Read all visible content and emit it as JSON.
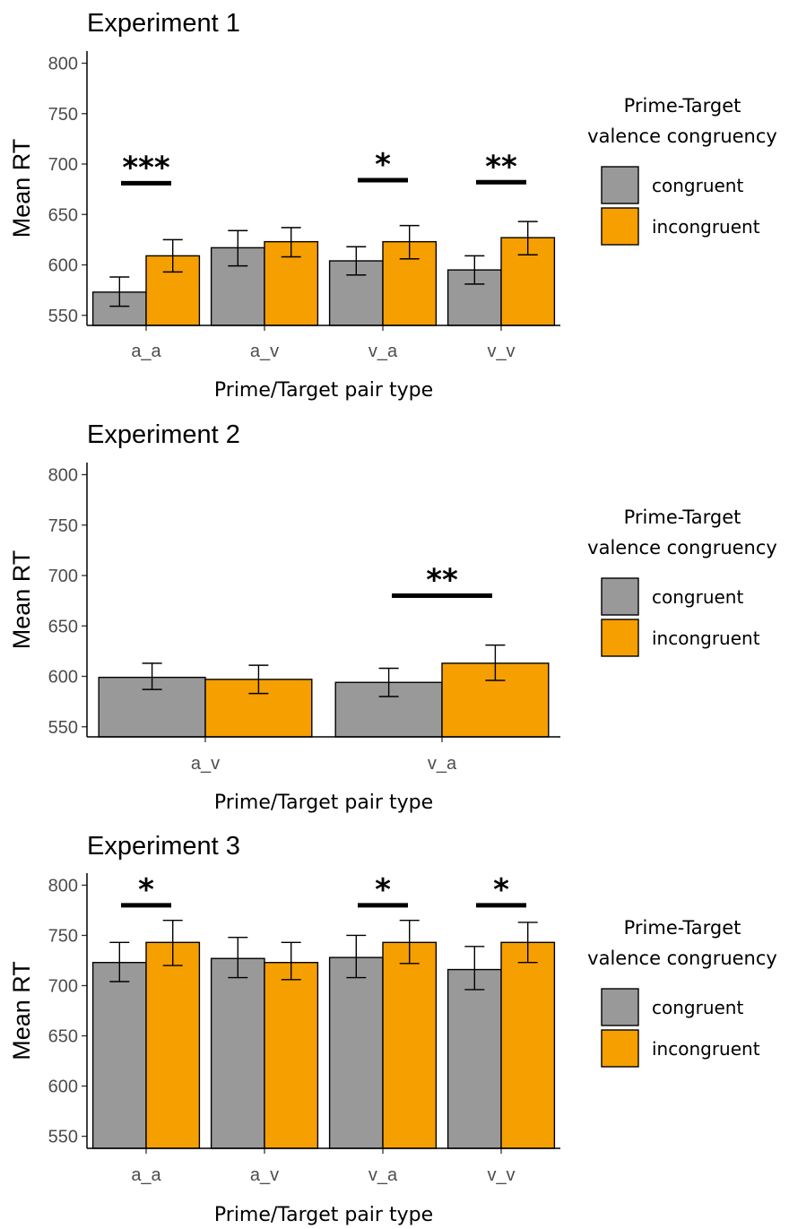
{
  "colors": {
    "congruent": "#999999",
    "incongruent": "#F59F00"
  },
  "chart_data": [
    {
      "type": "bar",
      "title": "Experiment 1",
      "xlabel": "Prime/Target pair type",
      "ylabel": "Mean RT",
      "ylim": [
        540,
        812
      ],
      "yticks": [
        550,
        600,
        650,
        700,
        750,
        800
      ],
      "grid": false,
      "legend_position": "right",
      "legend_title": [
        "Prime-Target",
        "valence congruency"
      ],
      "categories": [
        "a_a",
        "a_v",
        "v_a",
        "v_v"
      ],
      "series": [
        {
          "name": "congruent",
          "values": [
            573,
            617,
            604,
            595
          ],
          "err_low": [
            559,
            599,
            590,
            581
          ],
          "err_high": [
            588,
            634,
            618,
            609
          ]
        },
        {
          "name": "incongruent",
          "values": [
            609,
            623,
            623,
            627
          ],
          "err_low": [
            593,
            608,
            606,
            610
          ],
          "err_high": [
            625,
            637,
            639,
            643
          ]
        }
      ],
      "significance": [
        {
          "category": "a_a",
          "label": "***",
          "y": 681
        },
        {
          "category": "v_a",
          "label": "*",
          "y": 684
        },
        {
          "category": "v_v",
          "label": "**",
          "y": 682
        }
      ]
    },
    {
      "type": "bar",
      "title": "Experiment 2",
      "xlabel": "Prime/Target pair type",
      "ylabel": "Mean RT",
      "ylim": [
        540,
        812
      ],
      "yticks": [
        550,
        600,
        650,
        700,
        750,
        800
      ],
      "grid": false,
      "legend_position": "right",
      "legend_title": [
        "Prime-Target",
        "valence congruency"
      ],
      "categories": [
        "a_v",
        "v_a"
      ],
      "series": [
        {
          "name": "congruent",
          "values": [
            599,
            594
          ],
          "err_low": [
            587,
            580
          ],
          "err_high": [
            613,
            608
          ]
        },
        {
          "name": "incongruent",
          "values": [
            597,
            613
          ],
          "err_low": [
            583,
            596
          ],
          "err_high": [
            611,
            631
          ]
        }
      ],
      "significance": [
        {
          "category": "v_a",
          "label": "**",
          "y": 680
        }
      ]
    },
    {
      "type": "bar",
      "title": "Experiment 3",
      "xlabel": "Prime/Target pair type",
      "ylabel": "Mean RT",
      "ylim": [
        538,
        812
      ],
      "yticks": [
        550,
        600,
        650,
        700,
        750,
        800
      ],
      "grid": false,
      "legend_position": "right",
      "legend_title": [
        "Prime-Target",
        "valence congruency"
      ],
      "categories": [
        "a_a",
        "a_v",
        "v_a",
        "v_v"
      ],
      "series": [
        {
          "name": "congruent",
          "values": [
            723,
            727,
            728,
            716
          ],
          "err_low": [
            704,
            708,
            708,
            696
          ],
          "err_high": [
            743,
            748,
            750,
            739
          ]
        },
        {
          "name": "incongruent",
          "values": [
            743,
            723,
            743,
            743
          ],
          "err_low": [
            720,
            706,
            722,
            723
          ],
          "err_high": [
            765,
            743,
            765,
            763
          ]
        }
      ],
      "significance": [
        {
          "category": "a_a",
          "label": "*",
          "y": 780
        },
        {
          "category": "v_a",
          "label": "*",
          "y": 780
        },
        {
          "category": "v_v",
          "label": "*",
          "y": 780
        }
      ]
    }
  ]
}
